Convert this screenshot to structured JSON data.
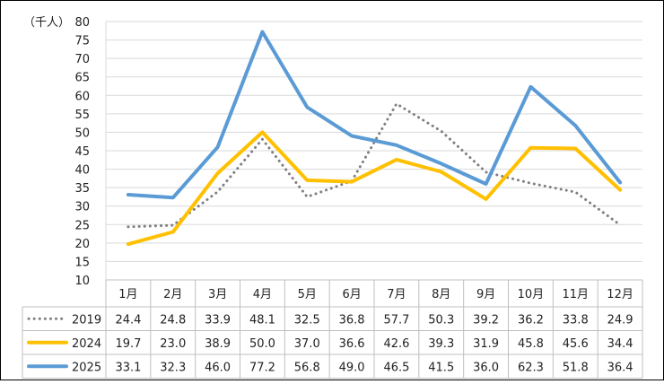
{
  "chart_data": {
    "type": "line",
    "unit_label": "（千人）",
    "ylim": [
      10,
      80
    ],
    "yticks": [
      10,
      15,
      20,
      25,
      30,
      35,
      40,
      45,
      50,
      55,
      60,
      65,
      70,
      75,
      80
    ],
    "categories": [
      "1月",
      "2月",
      "3月",
      "4月",
      "5月",
      "6月",
      "7月",
      "8月",
      "9月",
      "10月",
      "11月",
      "12月"
    ],
    "grid": true,
    "legend": "data-table-left",
    "series": [
      {
        "name": "2019",
        "color": "#7f7f7f",
        "style": "dotted",
        "values": [
          24.4,
          24.8,
          33.9,
          48.1,
          32.5,
          36.8,
          57.7,
          50.3,
          39.2,
          36.2,
          33.8,
          24.9
        ],
        "labels": [
          "24.4",
          "24.8",
          "33.9",
          "48.1",
          "32.5",
          "36.8",
          "57.7",
          "50.3",
          "39.2",
          "36.2",
          "33.8",
          "24.9"
        ]
      },
      {
        "name": "2024",
        "color": "#ffc000",
        "style": "solid",
        "values": [
          19.7,
          23.0,
          38.9,
          50.0,
          37.0,
          36.6,
          42.6,
          39.3,
          31.9,
          45.8,
          45.6,
          34.4
        ],
        "labels": [
          "19.7",
          "23.0",
          "38.9",
          "50.0",
          "37.0",
          "36.6",
          "42.6",
          "39.3",
          "31.9",
          "45.8",
          "45.6",
          "34.4"
        ]
      },
      {
        "name": "2025",
        "color": "#5b9bd5",
        "style": "solid",
        "values": [
          33.1,
          32.3,
          46.0,
          77.2,
          56.8,
          49.0,
          46.5,
          41.5,
          36.0,
          62.3,
          51.8,
          36.4
        ],
        "labels": [
          "33.1",
          "32.3",
          "46.0",
          "77.2",
          "56.8",
          "49.0",
          "46.5",
          "41.5",
          "36.0",
          "62.3",
          "51.8",
          "36.4"
        ]
      }
    ]
  }
}
